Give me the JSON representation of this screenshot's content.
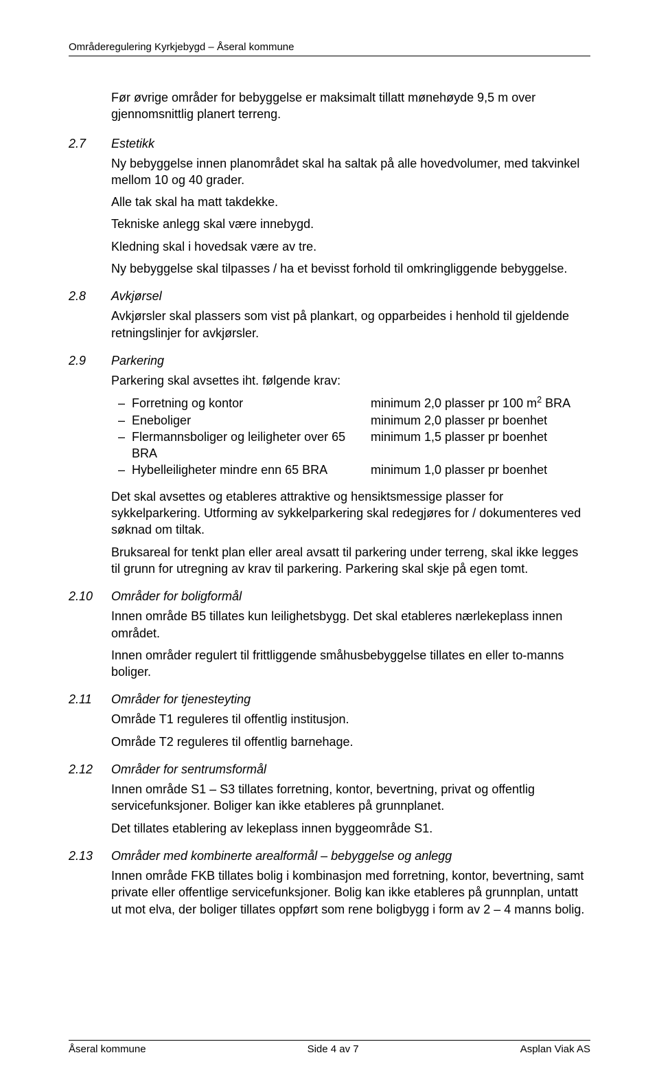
{
  "header": "Områderegulering Kyrkjebygd – Åseral kommune",
  "intro": "Før øvrige områder for bebyggelse er maksimalt tillatt mønehøyde 9,5 m over gjennomsnittlig planert terreng.",
  "sections": [
    {
      "num": "2.7",
      "title": "Estetikk",
      "paras": [
        "Ny bebyggelse innen planområdet skal ha saltak på alle hovedvolumer, med takvinkel mellom 10 og 40 grader.",
        "Alle tak skal ha matt takdekke.",
        "Tekniske anlegg skal være innebygd.",
        "Kledning skal i hovedsak være av tre.",
        "Ny bebyggelse skal tilpasses / ha et bevisst forhold til omkringliggende bebyggelse."
      ]
    },
    {
      "num": "2.8",
      "title": "Avkjørsel",
      "paras": [
        "Avkjørsler skal plassers som vist på plankart, og opparbeides i henhold til gjeldende retningslinjer for avkjørsler."
      ]
    },
    {
      "num": "2.9",
      "title": "Parkering",
      "lead": "Parkering skal avsettes iht. følgende krav:",
      "list": [
        {
          "label": "Forretning og kontor",
          "value_html": "minimum 2,0 plasser pr 100 m<sup>2</sup> BRA"
        },
        {
          "label": "Eneboliger",
          "value_html": "minimum 2,0 plasser pr boenhet"
        },
        {
          "label": "Flermannsboliger og leiligheter over 65 BRA",
          "value_html": "minimum 1,5 plasser pr boenhet"
        },
        {
          "label": "Hybelleiligheter mindre enn 65 BRA",
          "value_html": "minimum 1,0 plasser pr boenhet"
        }
      ],
      "paras_after": [
        "Det skal avsettes og etableres attraktive og hensiktsmessige plasser for sykkelparkering. Utforming av sykkelparkering skal redegjøres for / dokumenteres ved søknad om tiltak.",
        "Bruksareal for tenkt plan eller areal avsatt til parkering under terreng, skal ikke legges til grunn for utregning av krav til parkering. Parkering skal skje på egen tomt."
      ]
    },
    {
      "num": "2.10",
      "title": "Områder for boligformål",
      "paras": [
        "Innen område B5 tillates kun leilighetsbygg.  Det skal etableres nærlekeplass innen området.",
        "Innen områder regulert til frittliggende småhusbebyggelse tillates en eller to-manns boliger."
      ]
    },
    {
      "num": "2.11",
      "title": "Områder for tjenesteyting",
      "paras": [
        "Område T1 reguleres til offentlig institusjon.",
        "Område T2 reguleres til offentlig barnehage."
      ]
    },
    {
      "num": "2.12",
      "title": "Områder for sentrumsformål",
      "paras": [
        "Innen område S1 – S3 tillates forretning, kontor, bevertning, privat og offentlig servicefunksjoner. Boliger kan ikke etableres på grunnplanet.",
        "Det tillates etablering av lekeplass innen byggeområde S1."
      ]
    },
    {
      "num": "2.13",
      "title": "Områder med kombinerte arealformål – bebyggelse og anlegg",
      "paras": [
        "Innen område FKB tillates bolig i kombinasjon med forretning, kontor, bevertning, samt private eller offentlige servicefunksjoner. Bolig kan ikke etableres på grunnplan, untatt ut mot elva, der boliger tillates oppført  som rene boligbygg i form av 2 – 4 manns bolig."
      ]
    }
  ],
  "footer": {
    "left": "Åseral kommune",
    "center": "Side 4 av 7",
    "right": "Asplan Viak AS"
  }
}
